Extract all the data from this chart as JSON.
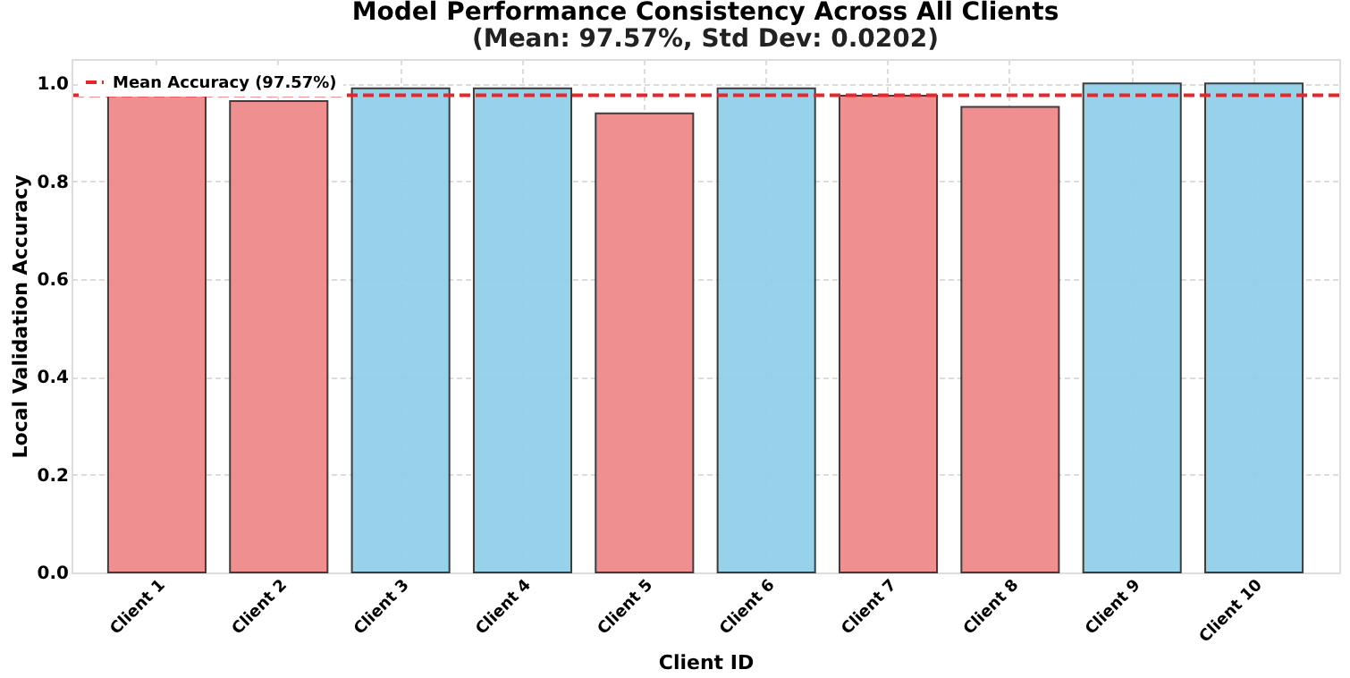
{
  "chart_data": {
    "type": "bar",
    "title": "Model Performance Consistency Across All Clients",
    "subtitle": "(Mean: 97.57%, Std Dev: 0.0202)",
    "xlabel": "Client ID",
    "ylabel": "Local Validation Accuracy",
    "categories": [
      "Client 1",
      "Client 2",
      "Client 3",
      "Client 4",
      "Client 5",
      "Client 6",
      "Client 7",
      "Client 8",
      "Client 9",
      "Client 10"
    ],
    "values": [
      0.975,
      0.964,
      0.99,
      0.99,
      0.939,
      0.99,
      0.975,
      0.952,
      1.0,
      1.0
    ],
    "colors": [
      "#f08a8a",
      "#f08a8a",
      "#92d0ea",
      "#92d0ea",
      "#f08a8a",
      "#92d0ea",
      "#f08a8a",
      "#f08a8a",
      "#92d0ea",
      "#92d0ea"
    ],
    "ylim": [
      0,
      1.05
    ],
    "yticks": [
      {
        "value": 0,
        "label": "0.0"
      },
      0.2,
      0.4,
      0.6,
      0.8,
      {
        "value": 1,
        "label": "1.0"
      }
    ],
    "grid": true,
    "legend": "top left",
    "ref_lines": [
      {
        "axis": "y",
        "value": 0.9757,
        "label": "Mean Accuracy (97.57%)",
        "color": "#e8262a",
        "line_style": "dashed"
      }
    ]
  }
}
